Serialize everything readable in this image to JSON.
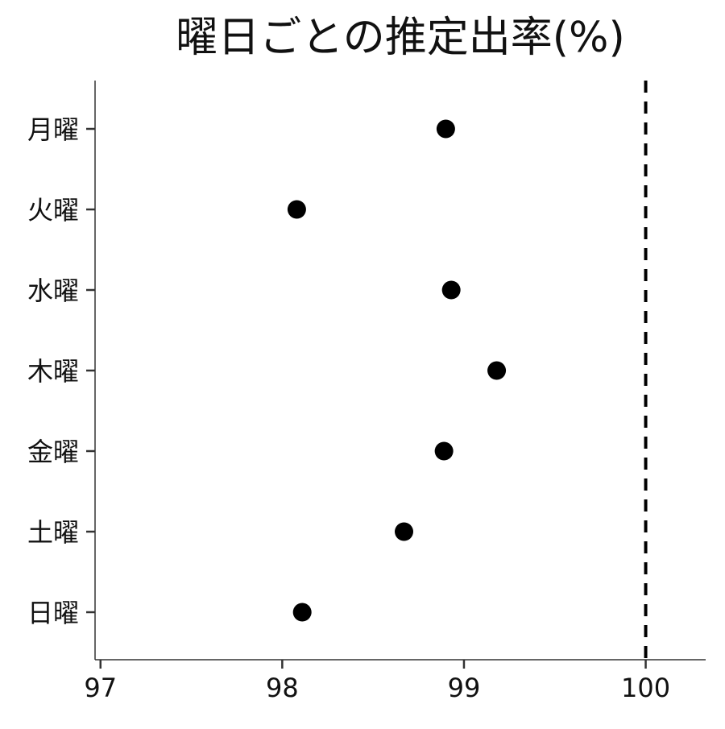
{
  "chart_data": {
    "type": "scatter",
    "title": "曜日ごとの推定出率(%)",
    "xlabel": "",
    "ylabel": "",
    "categories": [
      "月曜",
      "火曜",
      "水曜",
      "木曜",
      "金曜",
      "土曜",
      "日曜"
    ],
    "values": [
      98.9,
      98.08,
      98.93,
      99.18,
      98.89,
      98.67,
      98.11
    ],
    "xlim": [
      96.97,
      100.33
    ],
    "x_ticks": [
      97,
      98,
      99,
      100
    ],
    "x_tick_labels": [
      "97",
      "98",
      "99",
      "100"
    ],
    "reference_line": {
      "x": 100,
      "style": "dashed"
    },
    "grid": false,
    "legend": "none",
    "colors": {
      "point": "#000000",
      "axis": "#333333",
      "reference_line": "#000000"
    }
  }
}
